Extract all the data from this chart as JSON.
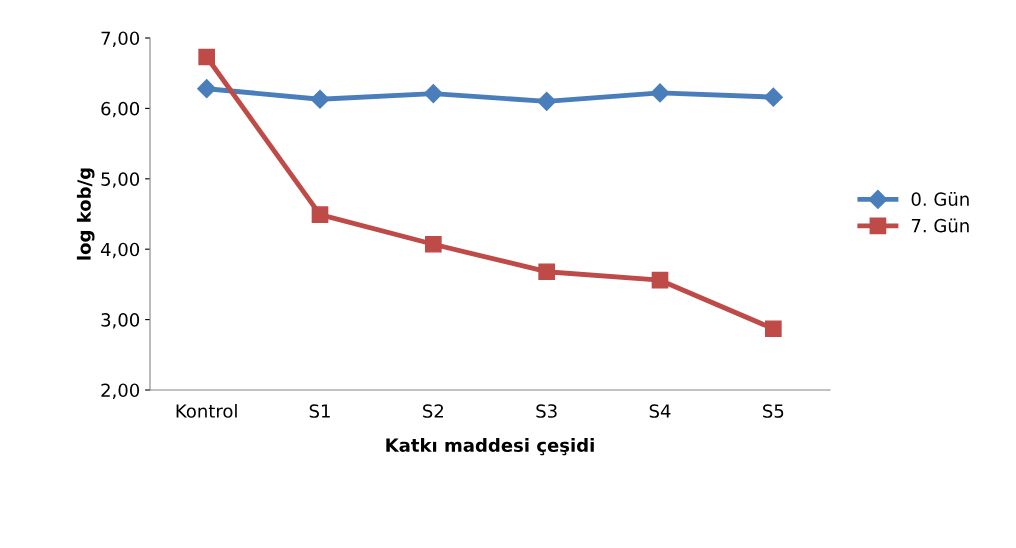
{
  "chart_data": {
    "type": "line",
    "xlabel": "Katkı maddesi çeşidi",
    "ylabel": "log kob/g",
    "categories": [
      "Kontrol",
      "S1",
      "S2",
      "S3",
      "S4",
      "S5"
    ],
    "series": [
      {
        "name": "0. Gün",
        "color": "#4a7ebb",
        "marker": "diamond",
        "values": [
          6.28,
          6.13,
          6.21,
          6.1,
          6.22,
          6.16
        ]
      },
      {
        "name": "7. Gün",
        "color": "#be4b48",
        "marker": "square",
        "values": [
          6.73,
          4.49,
          4.07,
          3.68,
          3.56,
          2.87
        ]
      }
    ],
    "ylim": [
      2,
      7
    ],
    "yticks": [
      {
        "value": 2,
        "label": "2,00"
      },
      {
        "value": 3,
        "label": "3,00"
      },
      {
        "value": 4,
        "label": "4,00"
      },
      {
        "value": 5,
        "label": "5,00"
      },
      {
        "value": 6,
        "label": "6,00"
      },
      {
        "value": 7,
        "label": "7,00"
      }
    ],
    "grid": false,
    "legend": "right",
    "line_style": "solid"
  }
}
